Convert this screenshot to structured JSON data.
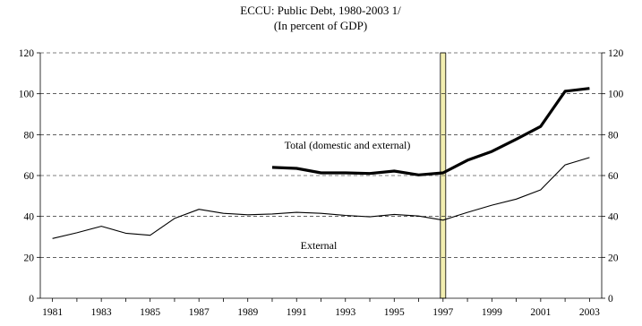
{
  "chart_data": {
    "type": "line",
    "title": "ECCU: Public Debt, 1980-2003 1/",
    "subtitle": "(In percent of GDP)",
    "xlabel": "",
    "ylabel": "",
    "xlim": [
      1980.5,
      2003.5
    ],
    "ylim": [
      0,
      120
    ],
    "y_ticks": [
      0,
      20,
      40,
      60,
      80,
      100,
      120
    ],
    "x_ticks": [
      1981,
      1983,
      1985,
      1987,
      1989,
      1991,
      1993,
      1995,
      1997,
      1999,
      2001,
      2003
    ],
    "grid": "horizontal-dashed",
    "highlight_year": 1997,
    "highlight_color": "#f2eeb0",
    "series": [
      {
        "name": "Total (domestic and external)",
        "line_style": "thick",
        "color": "#000000",
        "x": [
          1990,
          1991,
          1992,
          1993,
          1994,
          1995,
          1996,
          1997,
          1998,
          1999,
          2000,
          2001,
          2002,
          2003
        ],
        "values": [
          64.0,
          63.5,
          61.3,
          61.3,
          61.0,
          62.2,
          60.3,
          61.3,
          67.5,
          71.8,
          77.8,
          84.0,
          101.2,
          102.6
        ]
      },
      {
        "name": "External",
        "line_style": "thin",
        "color": "#000000",
        "x": [
          1981,
          1982,
          1983,
          1984,
          1985,
          1986,
          1987,
          1988,
          1989,
          1990,
          1991,
          1992,
          1993,
          1994,
          1995,
          1996,
          1997,
          1998,
          1999,
          2000,
          2001,
          2002,
          2003
        ],
        "values": [
          29.2,
          32.0,
          35.2,
          31.8,
          30.8,
          39.0,
          43.5,
          41.5,
          40.8,
          41.2,
          42.0,
          41.5,
          40.5,
          39.8,
          41.0,
          40.2,
          38.2,
          42.0,
          45.5,
          48.5,
          53.0,
          65.2,
          68.8
        ]
      }
    ]
  }
}
